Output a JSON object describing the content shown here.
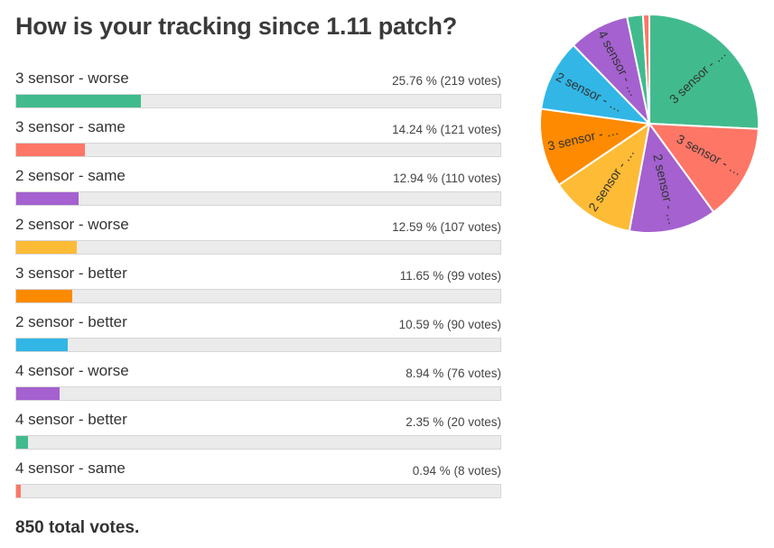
{
  "title": "How is your tracking since 1.11 patch?",
  "total_label": "850 total votes.",
  "rows": [
    {
      "label": "3 sensor - worse",
      "stat": "25.76 % (219 votes)",
      "color": "#41bb8e"
    },
    {
      "label": "3 sensor - same",
      "stat": "14.24 % (121 votes)",
      "color": "#fe7666"
    },
    {
      "label": "2 sensor - same",
      "stat": "12.94 % (110 votes)",
      "color": "#a461cf"
    },
    {
      "label": "2 sensor - worse",
      "stat": "12.59 % (107 votes)",
      "color": "#fdbb36"
    },
    {
      "label": "3 sensor - better",
      "stat": "11.65 % (99 votes)",
      "color": "#fd8a00"
    },
    {
      "label": "2 sensor - better",
      "stat": "10.59 % (90 votes)",
      "color": "#31b6e6"
    },
    {
      "label": "4 sensor - worse",
      "stat": "8.94 % (76 votes)",
      "color": "#a461cf"
    },
    {
      "label": "4 sensor - better",
      "stat": "2.35 % (20 votes)",
      "color": "#41bb8e"
    },
    {
      "label": "4 sensor - same",
      "stat": "0.94 % (8 votes)",
      "color": "#fe7666"
    }
  ],
  "chart_data": {
    "type": "pie",
    "categories": [
      "3 sensor - worse",
      "3 sensor - same",
      "2 sensor - same",
      "2 sensor - worse",
      "3 sensor - better",
      "2 sensor - better",
      "4 sensor - worse",
      "4 sensor - better",
      "4 sensor - same"
    ],
    "values": [
      219,
      121,
      110,
      107,
      99,
      90,
      76,
      20,
      8
    ],
    "percentages": [
      25.76,
      14.24,
      12.94,
      12.59,
      11.65,
      10.59,
      8.94,
      2.35,
      0.94
    ],
    "colors": [
      "#41bb8e",
      "#fe7666",
      "#a461cf",
      "#fdbb36",
      "#fd8a00",
      "#31b6e6",
      "#a461cf",
      "#41bb8e",
      "#fe7666"
    ],
    "slice_labels": [
      "3 sensor - …",
      "3 sensor - …",
      "2 sensor - …",
      "2 sensor - …",
      "3 sensor - …",
      "2 sensor - …",
      "4 sensor - …",
      "",
      ""
    ],
    "title": "How is your tracking since 1.11 patch?",
    "total": 850
  }
}
